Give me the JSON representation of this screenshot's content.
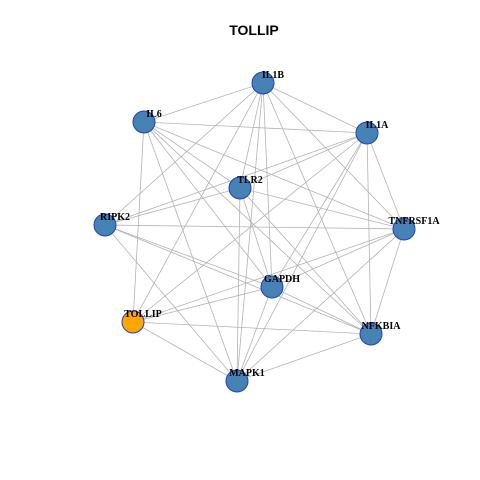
{
  "title": "TOLLIP",
  "colors": {
    "node_default": "#4682b4",
    "node_highlight": "#ffa500",
    "node_border": "#1f3fc8",
    "edge": "#b3b3b3"
  },
  "nodes": [
    {
      "id": "IL1B",
      "label": "IL1B",
      "highlight": false
    },
    {
      "id": "IL6",
      "label": "IL6",
      "highlight": false
    },
    {
      "id": "IL1A",
      "label": "IL1A",
      "highlight": false
    },
    {
      "id": "TLR2",
      "label": "TLR2",
      "highlight": false
    },
    {
      "id": "RIPK2",
      "label": "RIPK2",
      "highlight": false
    },
    {
      "id": "TNFRSF1A",
      "label": "TNFRSF1A",
      "highlight": false
    },
    {
      "id": "GAPDH",
      "label": "GAPDH",
      "highlight": false
    },
    {
      "id": "TOLLIP",
      "label": "TOLLIP",
      "highlight": true
    },
    {
      "id": "NFKBIA",
      "label": "NFKBIA",
      "highlight": false
    },
    {
      "id": "MAPK1",
      "label": "MAPK1",
      "highlight": false
    }
  ],
  "edges": [
    [
      "IL1B",
      "IL6"
    ],
    [
      "IL1B",
      "IL1A"
    ],
    [
      "IL1B",
      "TLR2"
    ],
    [
      "IL1B",
      "RIPK2"
    ],
    [
      "IL1B",
      "TNFRSF1A"
    ],
    [
      "IL1B",
      "GAPDH"
    ],
    [
      "IL1B",
      "TOLLIP"
    ],
    [
      "IL1B",
      "NFKBIA"
    ],
    [
      "IL1B",
      "MAPK1"
    ],
    [
      "IL6",
      "IL1A"
    ],
    [
      "IL6",
      "TLR2"
    ],
    [
      "IL6",
      "TNFRSF1A"
    ],
    [
      "IL6",
      "GAPDH"
    ],
    [
      "IL6",
      "TOLLIP"
    ],
    [
      "IL6",
      "NFKBIA"
    ],
    [
      "IL6",
      "MAPK1"
    ],
    [
      "IL1A",
      "TLR2"
    ],
    [
      "IL1A",
      "RIPK2"
    ],
    [
      "IL1A",
      "TNFRSF1A"
    ],
    [
      "IL1A",
      "GAPDH"
    ],
    [
      "IL1A",
      "TOLLIP"
    ],
    [
      "IL1A",
      "NFKBIA"
    ],
    [
      "IL1A",
      "MAPK1"
    ],
    [
      "TLR2",
      "RIPK2"
    ],
    [
      "TLR2",
      "TNFRSF1A"
    ],
    [
      "TLR2",
      "GAPDH"
    ],
    [
      "TLR2",
      "NFKBIA"
    ],
    [
      "TLR2",
      "MAPK1"
    ],
    [
      "RIPK2",
      "TNFRSF1A"
    ],
    [
      "RIPK2",
      "GAPDH"
    ],
    [
      "RIPK2",
      "NFKBIA"
    ],
    [
      "RIPK2",
      "MAPK1"
    ],
    [
      "TNFRSF1A",
      "GAPDH"
    ],
    [
      "TNFRSF1A",
      "TOLLIP"
    ],
    [
      "TNFRSF1A",
      "NFKBIA"
    ],
    [
      "TNFRSF1A",
      "MAPK1"
    ],
    [
      "GAPDH",
      "TOLLIP"
    ],
    [
      "GAPDH",
      "NFKBIA"
    ],
    [
      "GAPDH",
      "MAPK1"
    ],
    [
      "TOLLIP",
      "NFKBIA"
    ],
    [
      "TOLLIP",
      "MAPK1"
    ],
    [
      "NFKBIA",
      "MAPK1"
    ]
  ]
}
